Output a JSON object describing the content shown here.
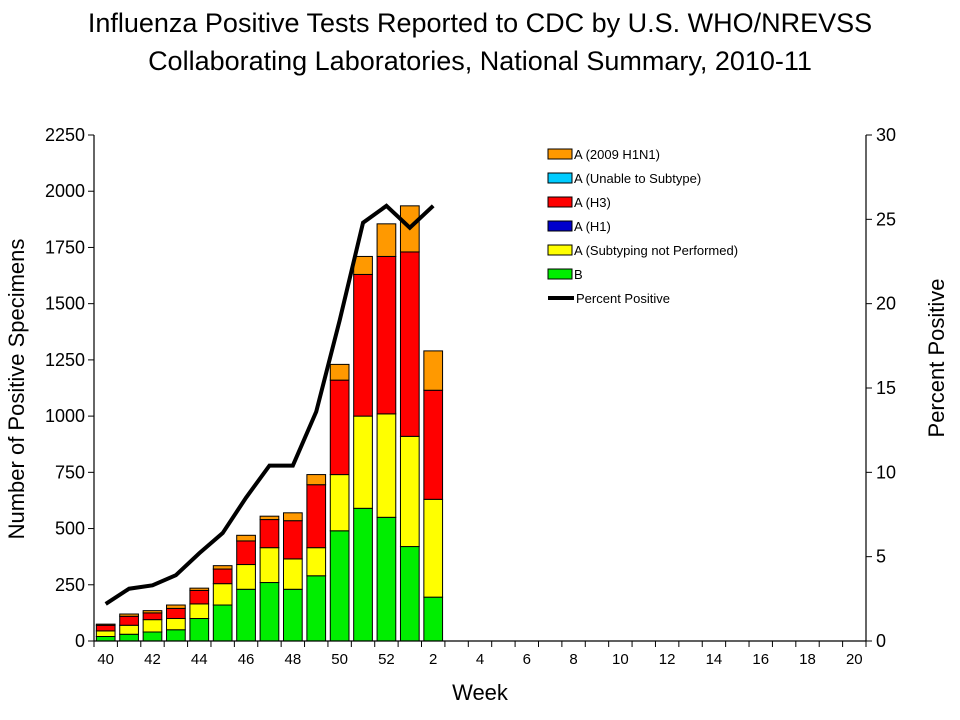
{
  "chart_data": {
    "type": "bar",
    "stacked": true,
    "title": "Influenza Positive Tests Reported to CDC by U.S. WHO/NREVSS",
    "subtitle": "Collaborating Laboratories, National Summary, 2010-11",
    "xlabel": "Week",
    "ylabel": "Number of Positive Specimens",
    "y2label": "Percent Positive",
    "ylim": [
      0,
      2250
    ],
    "y2lim": [
      0,
      30
    ],
    "yticks": [
      "0",
      "250",
      "500",
      "750",
      "1000",
      "1250",
      "1500",
      "1750",
      "2000",
      "2250"
    ],
    "y2ticks": [
      "0",
      "5",
      "10",
      "15",
      "20",
      "25",
      "30"
    ],
    "xtick_labels": [
      "40",
      "42",
      "44",
      "46",
      "48",
      "50",
      "52",
      "2",
      "4",
      "6",
      "8",
      "10",
      "12",
      "14",
      "16",
      "18",
      "20"
    ],
    "weeks": [
      "40",
      "41",
      "42",
      "43",
      "44",
      "45",
      "46",
      "47",
      "48",
      "49",
      "50",
      "51",
      "52",
      "1",
      "2",
      "3",
      "4",
      "5",
      "6",
      "7",
      "8",
      "9",
      "10",
      "11",
      "12",
      "13",
      "14",
      "15",
      "16",
      "17",
      "18",
      "19",
      "20"
    ],
    "legend_position": "top-right",
    "series": [
      {
        "name": "B",
        "color": "#00ee00",
        "values": [
          20,
          30,
          40,
          50,
          100,
          160,
          230,
          260,
          230,
          290,
          490,
          590,
          550,
          420,
          195
        ]
      },
      {
        "name": "A (Subtyping not Performed)",
        "color": "#ffff00",
        "values": [
          25,
          40,
          55,
          50,
          65,
          95,
          110,
          155,
          135,
          125,
          250,
          410,
          460,
          490,
          435
        ]
      },
      {
        "name": "A (H1)",
        "color": "#0000cc",
        "values": [
          0,
          0,
          0,
          0,
          0,
          0,
          0,
          0,
          0,
          0,
          0,
          0,
          0,
          0,
          0
        ]
      },
      {
        "name": "A (H3)",
        "color": "#ff0000",
        "values": [
          25,
          40,
          30,
          45,
          60,
          65,
          105,
          125,
          170,
          280,
          420,
          630,
          700,
          820,
          485
        ]
      },
      {
        "name": "A (Unable to Subtype)",
        "color": "#00ccff",
        "values": [
          0,
          0,
          0,
          0,
          0,
          0,
          0,
          0,
          0,
          0,
          0,
          0,
          0,
          0,
          0
        ]
      },
      {
        "name": "A (2009 H1N1)",
        "color": "#ff9900",
        "values": [
          5,
          10,
          10,
          15,
          10,
          15,
          25,
          15,
          35,
          45,
          70,
          80,
          145,
          205,
          175
        ]
      }
    ],
    "line": {
      "name": "Percent Positive",
      "color": "#000000",
      "values": [
        2.2,
        3.1,
        3.3,
        3.9,
        5.2,
        6.4,
        8.5,
        10.4,
        10.4,
        13.6,
        19.0,
        24.8,
        25.8,
        24.5,
        25.8
      ]
    },
    "legend_order": [
      "A (2009 H1N1)",
      "A (Unable to Subtype)",
      "A (H3)",
      "A (H1)",
      "A (Subtyping not Performed)",
      "B",
      "Percent Positive"
    ]
  }
}
